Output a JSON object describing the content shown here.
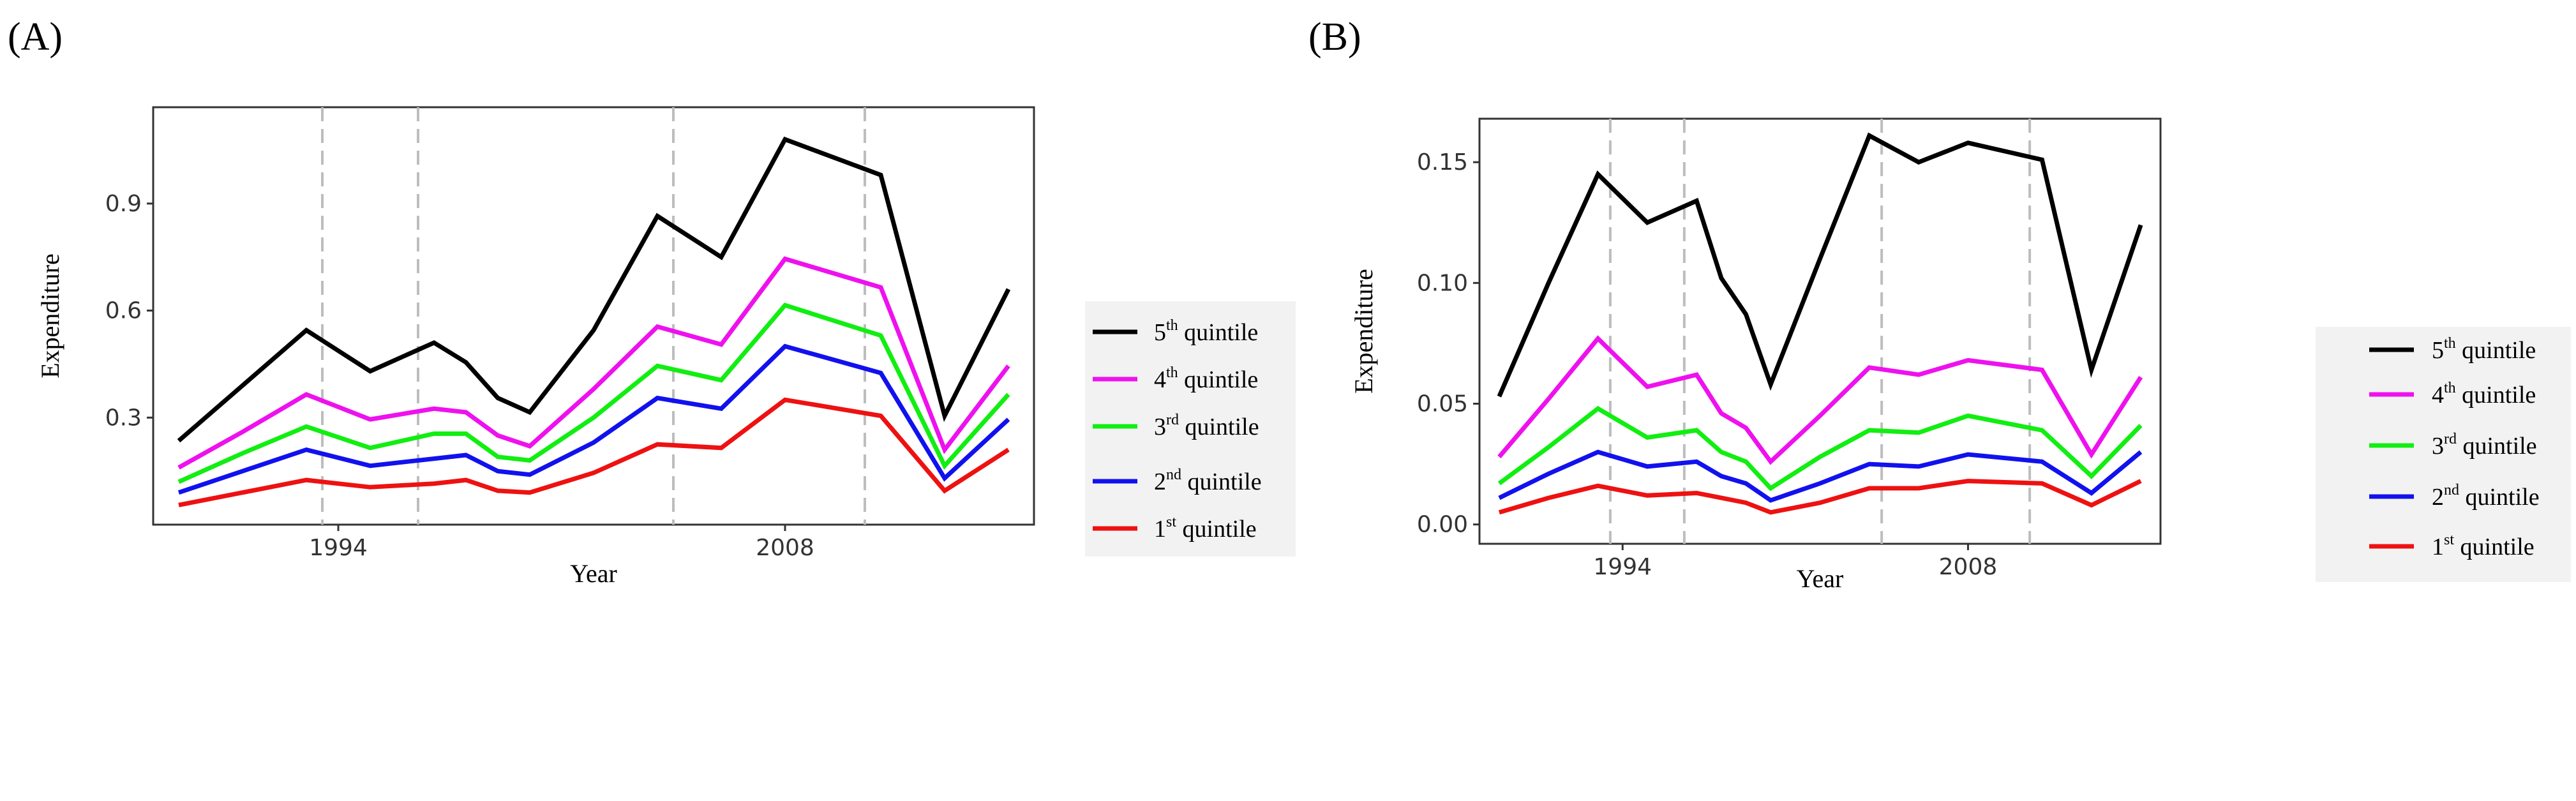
{
  "chart_data": [
    {
      "panel_label": "(A)",
      "type": "line",
      "xlabel": "Year",
      "ylabel": "Expenditure",
      "x": [
        1989,
        1991,
        1993,
        1995,
        1997,
        1998,
        1999,
        2000,
        2002,
        2004,
        2006,
        2008,
        2011,
        2013,
        2015
      ],
      "x_ticks": [
        1994,
        2008
      ],
      "x_tick_labels": [
        "1994",
        "2008"
      ],
      "xlim": [
        1988.2,
        2015.8
      ],
      "y_ticks": [
        0.3,
        0.6,
        0.9
      ],
      "y_tick_labels": [
        "0.3",
        "0.6",
        "0.9"
      ],
      "ylim": [
        0.0,
        1.17
      ],
      "vlines": [
        1993.5,
        1996.5,
        2004.5,
        2010.5
      ],
      "grid": false,
      "legend_position": "right",
      "series": [
        {
          "name": "5th quintile",
          "color": "#000000",
          "values": [
            0.235,
            0.39,
            0.545,
            0.43,
            0.51,
            0.455,
            0.355,
            0.315,
            0.545,
            0.865,
            0.75,
            1.08,
            0.98,
            0.305,
            0.66
          ]
        },
        {
          "name": "4th quintile",
          "color": "#ee11ee",
          "values": [
            0.16,
            0.26,
            0.365,
            0.295,
            0.325,
            0.315,
            0.25,
            0.22,
            0.38,
            0.555,
            0.505,
            0.745,
            0.665,
            0.21,
            0.445
          ]
        },
        {
          "name": "3rd quintile",
          "color": "#11ee11",
          "values": [
            0.12,
            0.2,
            0.275,
            0.215,
            0.255,
            0.255,
            0.19,
            0.18,
            0.3,
            0.445,
            0.405,
            0.615,
            0.53,
            0.165,
            0.365
          ]
        },
        {
          "name": "2nd quintile",
          "color": "#1111ee",
          "values": [
            0.09,
            0.15,
            0.21,
            0.165,
            0.185,
            0.195,
            0.15,
            0.14,
            0.23,
            0.355,
            0.325,
            0.5,
            0.425,
            0.13,
            0.295
          ]
        },
        {
          "name": "1st quintile",
          "color": "#ee1111",
          "values": [
            0.055,
            0.09,
            0.125,
            0.105,
            0.115,
            0.125,
            0.095,
            0.09,
            0.145,
            0.225,
            0.215,
            0.35,
            0.305,
            0.095,
            0.21
          ]
        }
      ],
      "legend": [
        {
          "base": "5",
          "sup": "th",
          "rest": " quintile",
          "color": "#000000"
        },
        {
          "base": "4",
          "sup": "th",
          "rest": " quintile",
          "color": "#ee11ee"
        },
        {
          "base": "3",
          "sup": "rd",
          "rest": " quintile",
          "color": "#11ee11"
        },
        {
          "base": "2",
          "sup": "nd",
          "rest": " quintile",
          "color": "#1111ee"
        },
        {
          "base": "1",
          "sup": "st",
          "rest": " quintile",
          "color": "#ee1111"
        }
      ]
    },
    {
      "panel_label": "(B)",
      "type": "line",
      "xlabel": "Year",
      "ylabel": "Expenditure",
      "x": [
        1989,
        1991,
        1993,
        1995,
        1997,
        1998,
        1999,
        2000,
        2002,
        2004,
        2006,
        2008,
        2011,
        2013,
        2015
      ],
      "x_ticks": [
        1994,
        2008
      ],
      "x_tick_labels": [
        "1994",
        "2008"
      ],
      "xlim": [
        1988.2,
        2015.8
      ],
      "y_ticks": [
        0.0,
        0.05,
        0.1,
        0.15
      ],
      "y_tick_labels": [
        "0.00",
        "0.05",
        "0.10",
        "0.15"
      ],
      "ylim": [
        -0.008,
        0.168
      ],
      "vlines": [
        1993.5,
        1996.5,
        2004.5,
        2010.5
      ],
      "grid": false,
      "legend_position": "right",
      "series": [
        {
          "name": "5th quintile",
          "color": "#000000",
          "values": [
            0.053,
            0.1,
            0.145,
            0.125,
            0.134,
            0.102,
            0.087,
            0.058,
            0.11,
            0.161,
            0.15,
            0.158,
            0.151,
            0.064,
            0.124
          ]
        },
        {
          "name": "4th quintile",
          "color": "#ee11ee",
          "values": [
            0.028,
            0.052,
            0.077,
            0.057,
            0.062,
            0.046,
            0.04,
            0.026,
            0.045,
            0.065,
            0.062,
            0.068,
            0.064,
            0.029,
            0.061
          ]
        },
        {
          "name": "3rd quintile",
          "color": "#11ee11",
          "values": [
            0.017,
            0.032,
            0.048,
            0.036,
            0.039,
            0.03,
            0.026,
            0.015,
            0.028,
            0.039,
            0.038,
            0.045,
            0.039,
            0.02,
            0.041
          ]
        },
        {
          "name": "2nd quintile",
          "color": "#1111ee",
          "values": [
            0.011,
            0.021,
            0.03,
            0.024,
            0.026,
            0.02,
            0.017,
            0.01,
            0.017,
            0.025,
            0.024,
            0.029,
            0.026,
            0.013,
            0.03
          ]
        },
        {
          "name": "1st quintile",
          "color": "#ee1111",
          "values": [
            0.005,
            0.011,
            0.016,
            0.012,
            0.013,
            0.011,
            0.009,
            0.005,
            0.009,
            0.015,
            0.015,
            0.018,
            0.017,
            0.008,
            0.018
          ]
        }
      ],
      "legend": [
        {
          "base": "5",
          "sup": "th",
          "rest": " quintile",
          "color": "#000000"
        },
        {
          "base": "4",
          "sup": "th",
          "rest": " quintile",
          "color": "#ee11ee"
        },
        {
          "base": "3",
          "sup": "rd",
          "rest": " quintile",
          "color": "#11ee11"
        },
        {
          "base": "2",
          "sup": "nd",
          "rest": " quintile",
          "color": "#1111ee"
        },
        {
          "base": "1",
          "sup": "st",
          "rest": " quintile",
          "color": "#ee1111"
        }
      ]
    }
  ]
}
